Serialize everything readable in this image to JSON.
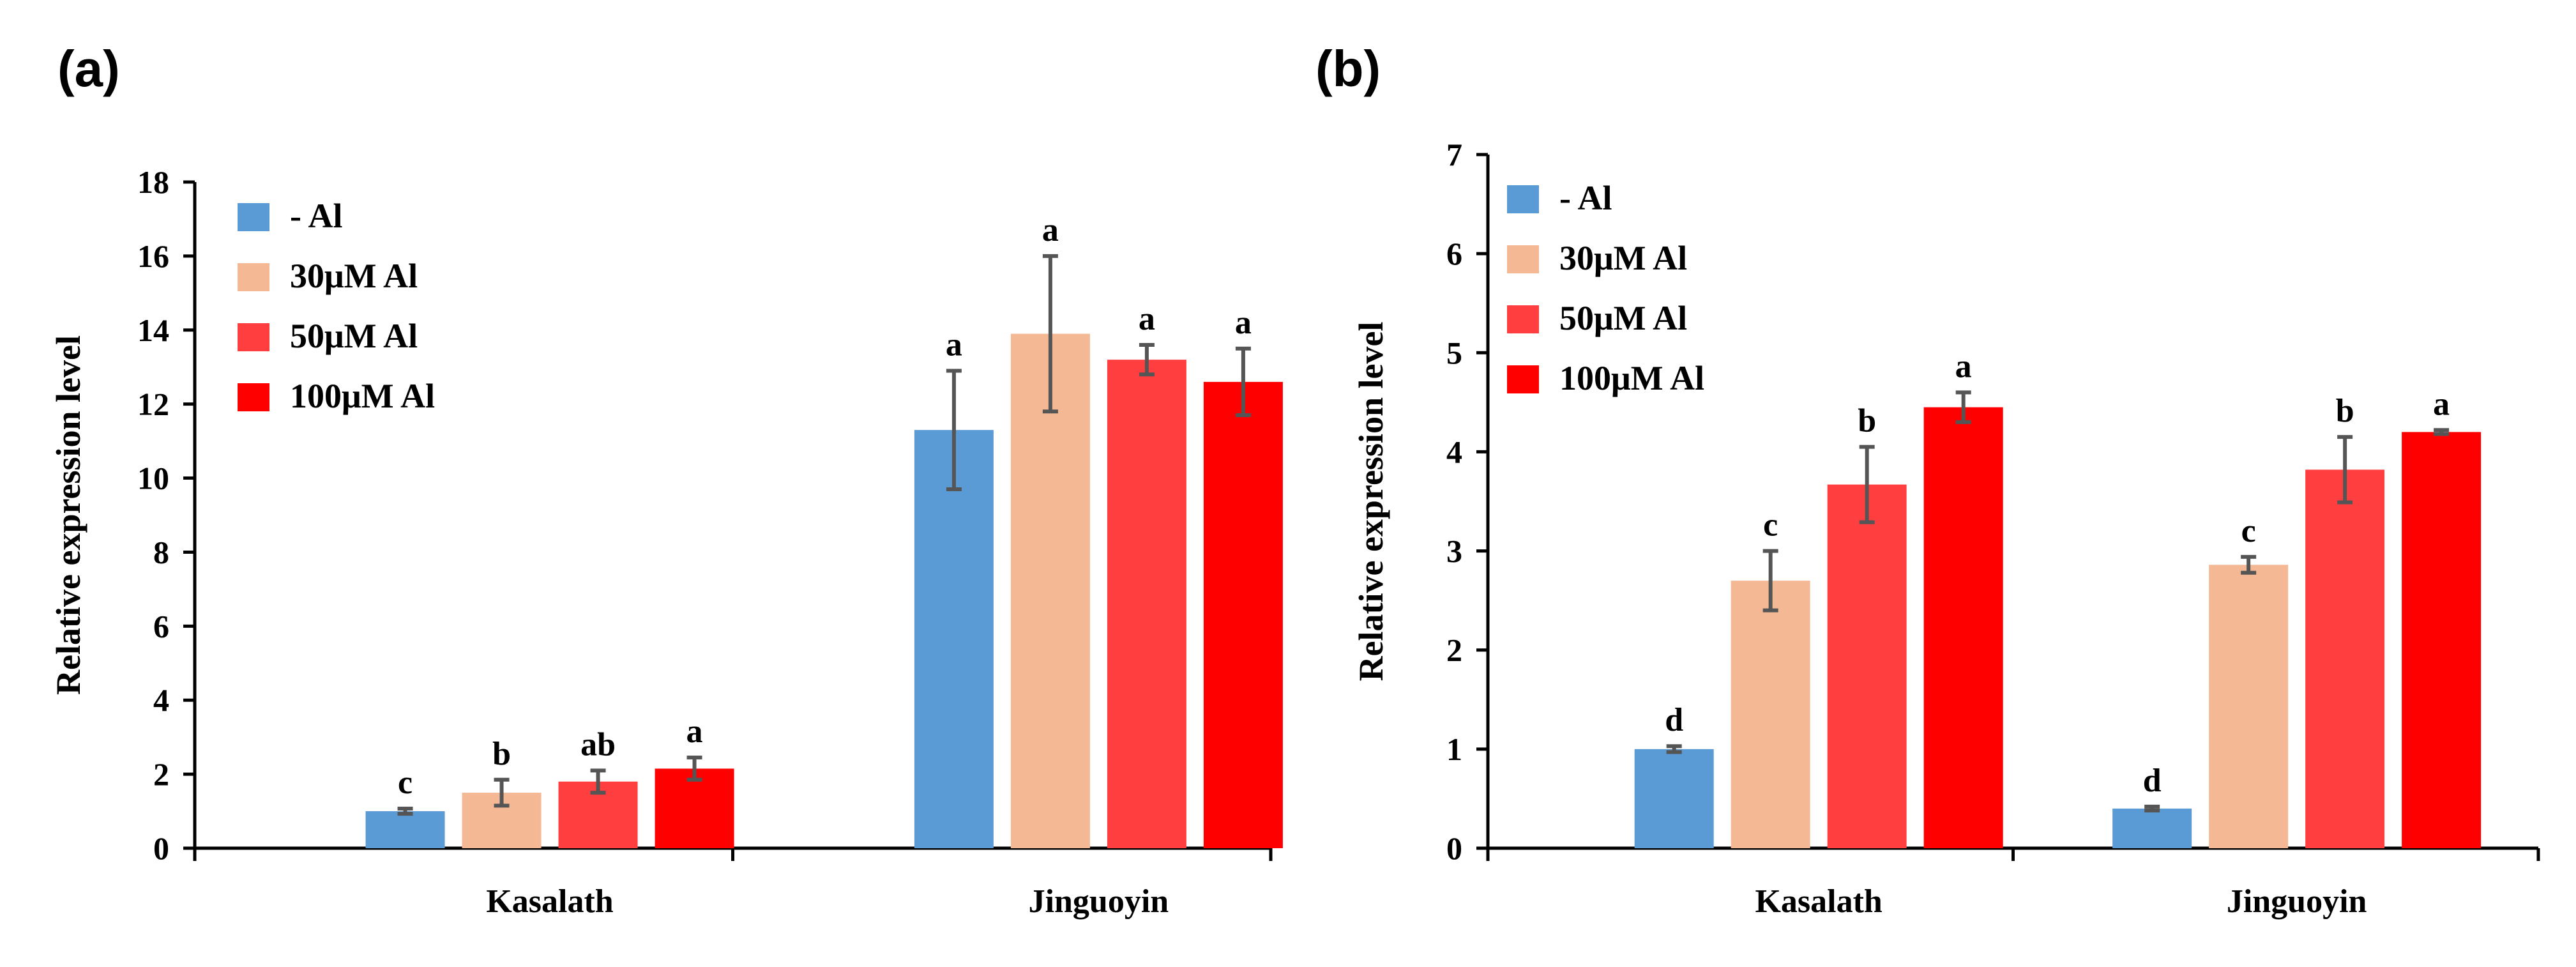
{
  "chart_data": [
    {
      "type": "bar",
      "panel_label": "(a)",
      "categories": [
        "Kasalath",
        "Jinguoyin"
      ],
      "ylabel": "Relative expression level",
      "xlabel": "",
      "ylim": [
        0,
        18
      ],
      "yticks": [
        0,
        2,
        4,
        6,
        8,
        10,
        12,
        14,
        16,
        18
      ],
      "legend_position": "top-left",
      "series": [
        {
          "name": "- Al",
          "color": "#5B9BD5",
          "values": [
            1.0,
            11.3
          ],
          "errors": [
            0.07,
            1.6
          ],
          "labels": [
            "c",
            "a"
          ]
        },
        {
          "name": "30μM Al",
          "color": "#F4B994",
          "values": [
            1.5,
            13.9
          ],
          "errors": [
            0.35,
            2.1
          ],
          "labels": [
            "b",
            "a"
          ]
        },
        {
          "name": "50μM Al",
          "color": "#FF3F3F",
          "values": [
            1.8,
            13.2
          ],
          "errors": [
            0.3,
            0.4
          ],
          "labels": [
            "ab",
            "a"
          ]
        },
        {
          "name": "100μM Al",
          "color": "#FF0000",
          "values": [
            2.15,
            12.6
          ],
          "errors": [
            0.3,
            0.9
          ],
          "labels": [
            "a",
            "a"
          ]
        }
      ]
    },
    {
      "type": "bar",
      "panel_label": "(b)",
      "categories": [
        "Kasalath",
        "Jinguoyin"
      ],
      "ylabel": "Relative expression level",
      "xlabel": "",
      "ylim": [
        0,
        7
      ],
      "yticks": [
        0,
        1,
        2,
        3,
        4,
        5,
        6,
        7
      ],
      "legend_position": "top-left",
      "series": [
        {
          "name": "- Al",
          "color": "#5B9BD5",
          "values": [
            1.0,
            0.4
          ],
          "errors": [
            0.03,
            0.02
          ],
          "labels": [
            "d",
            "d"
          ]
        },
        {
          "name": "30μM Al",
          "color": "#F4B994",
          "values": [
            2.7,
            2.86
          ],
          "errors": [
            0.3,
            0.08
          ],
          "labels": [
            "c",
            "c"
          ]
        },
        {
          "name": "50μM Al",
          "color": "#FF3F3F",
          "values": [
            3.67,
            3.82
          ],
          "errors": [
            0.38,
            0.33
          ],
          "labels": [
            "b",
            "b"
          ]
        },
        {
          "name": "100μM Al",
          "color": "#FF0000",
          "values": [
            4.45,
            4.2
          ],
          "errors": [
            0.15,
            0.02
          ],
          "labels": [
            "a",
            "a"
          ]
        }
      ]
    }
  ]
}
